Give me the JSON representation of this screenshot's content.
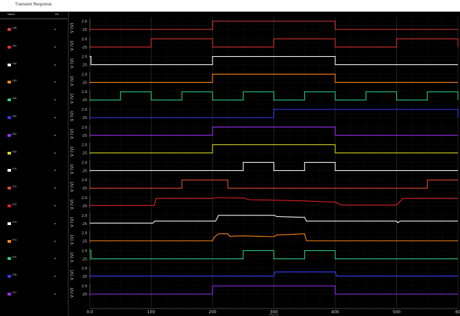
{
  "window": {
    "title": "Transient Response"
  },
  "list_header": {
    "name": "Name",
    "vis": "Vis"
  },
  "axis": {
    "y_label": "V (V)",
    "y_ticks": [
      "2.0",
      "-25"
    ],
    "x_ticks": [
      "0.0",
      "100",
      "200",
      "300",
      "400",
      "500",
      "60"
    ],
    "x_label": "time (ns)",
    "x_range": [
      0,
      600
    ]
  },
  "signals": [
    {
      "name": "/A0",
      "vis": "●",
      "color": "#e04040",
      "kind": "digital",
      "edges": [
        [
          0,
          0
        ],
        [
          200,
          1
        ],
        [
          400,
          0
        ]
      ]
    },
    {
      "name": "/A1",
      "vis": "●",
      "color": "#e03030",
      "kind": "digital",
      "edges": [
        [
          0,
          0
        ],
        [
          100,
          1
        ],
        [
          200,
          0
        ],
        [
          300,
          1
        ],
        [
          400,
          0
        ],
        [
          500,
          1
        ],
        [
          600,
          0
        ]
      ]
    },
    {
      "name": "/A2",
      "vis": "●",
      "color": "#ffffff",
      "kind": "digital",
      "edges": [
        [
          0,
          1
        ],
        [
          2,
          0
        ],
        [
          200,
          1
        ],
        [
          400,
          0
        ]
      ]
    },
    {
      "name": "/A3",
      "vis": "●",
      "color": "#ff8a1a",
      "kind": "digital",
      "edges": [
        [
          0,
          0
        ],
        [
          200,
          1
        ],
        [
          400,
          0
        ]
      ]
    },
    {
      "name": "/B0",
      "vis": "●",
      "color": "#2ecf8a",
      "kind": "digital",
      "edges": [
        [
          0,
          0
        ],
        [
          50,
          1
        ],
        [
          100,
          0
        ],
        [
          150,
          1
        ],
        [
          200,
          0
        ],
        [
          250,
          1
        ],
        [
          300,
          0
        ],
        [
          350,
          1
        ],
        [
          400,
          0
        ],
        [
          450,
          1
        ],
        [
          500,
          0
        ],
        [
          550,
          1
        ],
        [
          600,
          0
        ]
      ]
    },
    {
      "name": "/B1",
      "vis": "●",
      "color": "#3a3aff",
      "kind": "digital",
      "edges": [
        [
          0,
          0
        ],
        [
          300,
          1
        ],
        [
          600,
          0
        ]
      ]
    },
    {
      "name": "/B2",
      "vis": "●",
      "color": "#a030ff",
      "kind": "digital",
      "edges": [
        [
          0,
          0
        ],
        [
          200,
          1
        ],
        [
          400,
          0
        ]
      ]
    },
    {
      "name": "/B3",
      "vis": "●",
      "color": "#d8d820",
      "kind": "digital",
      "edges": [
        [
          0,
          0
        ],
        [
          200,
          1
        ],
        [
          400,
          0
        ]
      ]
    },
    {
      "name": "/P0",
      "vis": "●",
      "color": "#ffffff",
      "kind": "digital",
      "edges": [
        [
          0,
          0
        ],
        [
          250,
          1
        ],
        [
          300,
          0
        ],
        [
          350,
          1
        ],
        [
          400,
          0
        ]
      ]
    },
    {
      "name": "/P1",
      "vis": "●",
      "color": "#e05030",
      "kind": "digital",
      "edges": [
        [
          0,
          0
        ],
        [
          150,
          1
        ],
        [
          225,
          0
        ],
        [
          550,
          1
        ],
        [
          600,
          1
        ]
      ]
    },
    {
      "name": "/P2",
      "vis": "●",
      "color": "#e02020",
      "kind": "analog",
      "points": [
        [
          0,
          0.05
        ],
        [
          105,
          0.05
        ],
        [
          108,
          0.9
        ],
        [
          200,
          0.9
        ],
        [
          205,
          1.0
        ],
        [
          250,
          0.95
        ],
        [
          260,
          0.75
        ],
        [
          300,
          0.7
        ],
        [
          350,
          0.6
        ],
        [
          400,
          0.45
        ],
        [
          410,
          0.1
        ],
        [
          500,
          0.1
        ],
        [
          510,
          0.9
        ],
        [
          600,
          0.9
        ]
      ]
    },
    {
      "name": "/P3",
      "vis": "●",
      "color": "#ffffff",
      "kind": "analog",
      "points": [
        [
          0,
          0.05
        ],
        [
          103,
          0.05
        ],
        [
          106,
          0.3
        ],
        [
          205,
          0.3
        ],
        [
          210,
          1.0
        ],
        [
          300,
          1.0
        ],
        [
          305,
          0.85
        ],
        [
          350,
          0.75
        ],
        [
          353,
          0.3
        ],
        [
          400,
          0.3
        ],
        [
          500,
          0.3
        ],
        [
          502,
          0.1
        ],
        [
          506,
          0.3
        ],
        [
          600,
          0.3
        ]
      ]
    },
    {
      "name": "/P4",
      "vis": "●",
      "color": "#ff8a1a",
      "kind": "analog",
      "points": [
        [
          0,
          0.05
        ],
        [
          200,
          0.05
        ],
        [
          203,
          0.5
        ],
        [
          210,
          0.9
        ],
        [
          225,
          0.9
        ],
        [
          228,
          0.6
        ],
        [
          250,
          0.65
        ],
        [
          300,
          0.55
        ],
        [
          305,
          0.75
        ],
        [
          350,
          0.9
        ],
        [
          353,
          0.05
        ],
        [
          600,
          0.05
        ]
      ]
    },
    {
      "name": "/P5",
      "vis": "●",
      "color": "#2ecf8a",
      "kind": "digital",
      "edges": [
        [
          0,
          1
        ],
        [
          2,
          0
        ],
        [
          250,
          1
        ],
        [
          300,
          0
        ],
        [
          350,
          1
        ],
        [
          400,
          0
        ]
      ]
    },
    {
      "name": "/P6",
      "vis": "●",
      "color": "#3a3aff",
      "kind": "analog",
      "points": [
        [
          0,
          0.05
        ],
        [
          300,
          0.05
        ],
        [
          302,
          0.55
        ],
        [
          400,
          0.55
        ],
        [
          402,
          0.05
        ],
        [
          600,
          0.05
        ]
      ]
    },
    {
      "name": "/P7",
      "vis": "●",
      "color": "#a030ff",
      "kind": "digital",
      "edges": [
        [
          0,
          0
        ],
        [
          200,
          1
        ],
        [
          400,
          0
        ]
      ]
    }
  ]
}
